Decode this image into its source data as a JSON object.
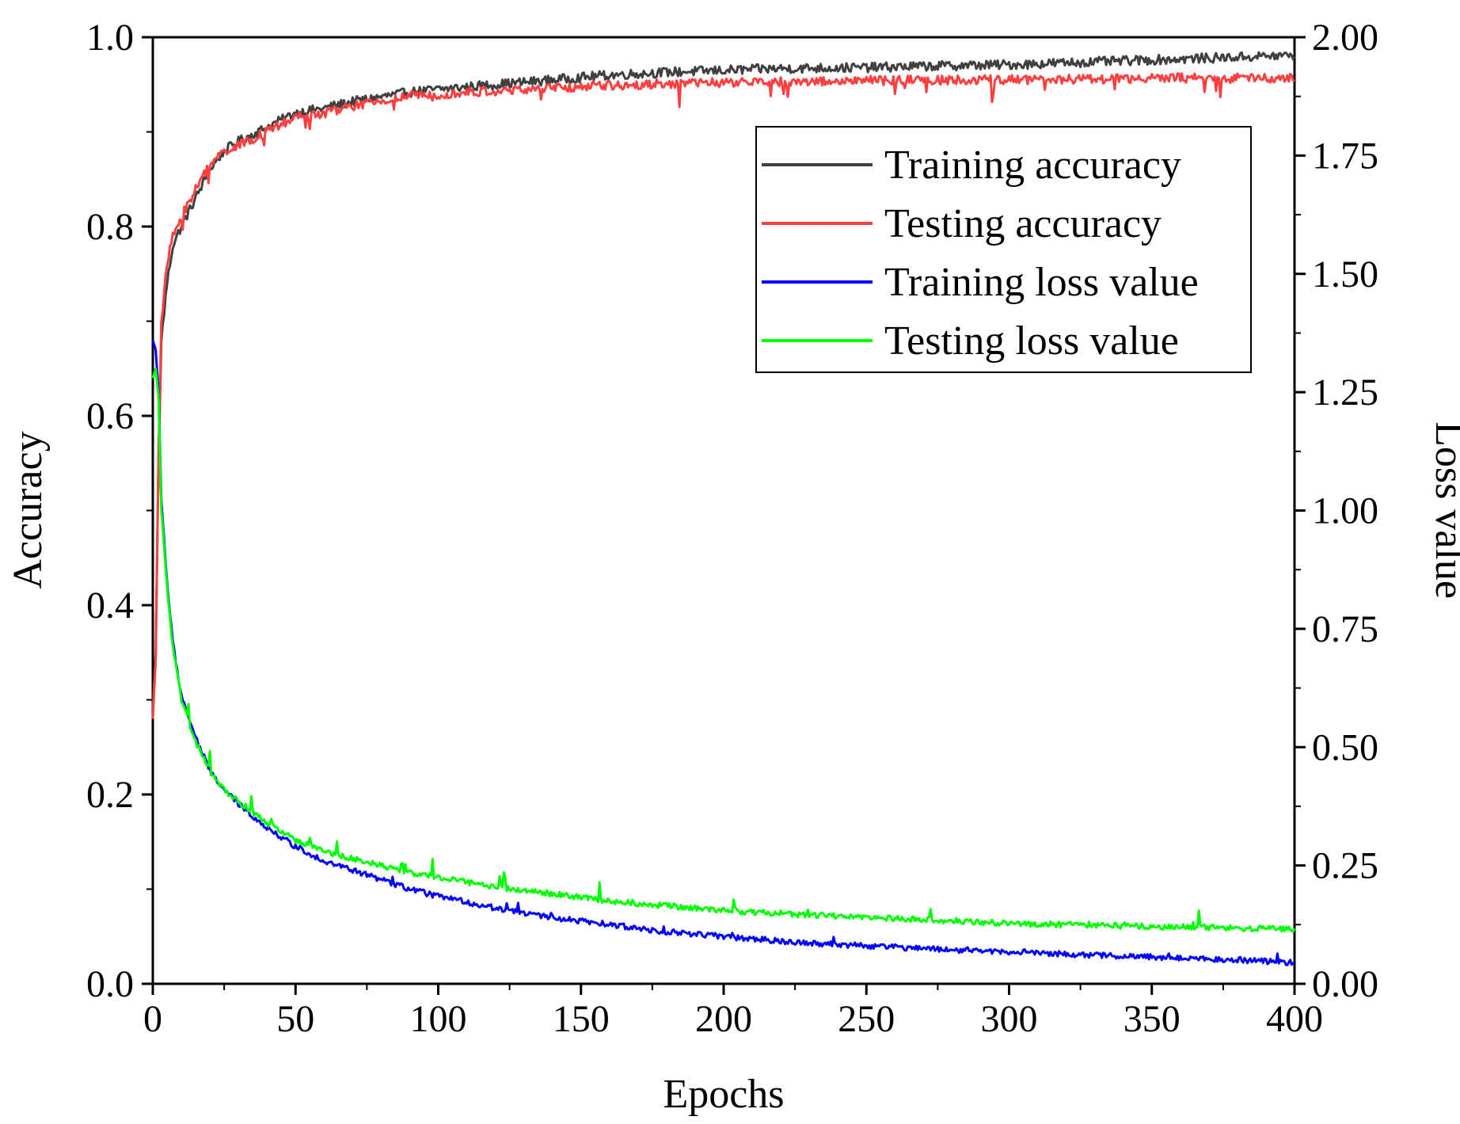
{
  "chart_data": {
    "type": "line",
    "title": "",
    "xlabel": "Epochs",
    "ylabel": "Accuracy",
    "y2label": "Loss value",
    "xlim": [
      0,
      400
    ],
    "ylim": [
      0.0,
      1.0
    ],
    "y2lim": [
      0.0,
      2.0
    ],
    "x_ticks": [
      0,
      50,
      100,
      150,
      200,
      250,
      300,
      350,
      400
    ],
    "x_tick_labels": [
      "0",
      "50",
      "100",
      "150",
      "200",
      "250",
      "300",
      "350",
      "400"
    ],
    "y_ticks": [
      0.0,
      0.2,
      0.4,
      0.6,
      0.8,
      1.0
    ],
    "y_tick_labels": [
      "0.0",
      "0.2",
      "0.4",
      "0.6",
      "0.8",
      "1.0"
    ],
    "y2_ticks": [
      0.0,
      0.25,
      0.5,
      0.75,
      1.0,
      1.25,
      1.5,
      1.75,
      2.0
    ],
    "y2_tick_labels": [
      "0.00",
      "0.25",
      "0.50",
      "0.75",
      "1.00",
      "1.25",
      "1.50",
      "1.75",
      "2.00"
    ],
    "grid": false,
    "legend_position": "top-right",
    "series": [
      {
        "name": "Training accuracy",
        "axis": "left",
        "color": "#404040",
        "x": [
          0,
          1,
          2,
          3,
          5,
          7,
          10,
          15,
          20,
          25,
          30,
          40,
          50,
          60,
          70,
          80,
          90,
          100,
          120,
          140,
          160,
          180,
          200,
          220,
          250,
          280,
          300,
          320,
          340,
          360,
          380,
          400
        ],
        "values": [
          0.29,
          0.35,
          0.55,
          0.68,
          0.74,
          0.78,
          0.8,
          0.83,
          0.86,
          0.88,
          0.89,
          0.905,
          0.92,
          0.925,
          0.932,
          0.937,
          0.942,
          0.945,
          0.95,
          0.955,
          0.96,
          0.963,
          0.965,
          0.967,
          0.968,
          0.97,
          0.971,
          0.973,
          0.975,
          0.977,
          0.979,
          0.981
        ]
      },
      {
        "name": "Testing accuracy",
        "axis": "left",
        "color": "#ff4040",
        "x": [
          0,
          1,
          2,
          3,
          5,
          7,
          10,
          15,
          20,
          25,
          30,
          40,
          50,
          60,
          70,
          80,
          90,
          100,
          120,
          140,
          160,
          180,
          200,
          220,
          250,
          280,
          300,
          320,
          340,
          360,
          380,
          400
        ],
        "values": [
          0.28,
          0.34,
          0.56,
          0.7,
          0.76,
          0.79,
          0.81,
          0.84,
          0.865,
          0.88,
          0.885,
          0.9,
          0.915,
          0.92,
          0.927,
          0.932,
          0.938,
          0.94,
          0.943,
          0.946,
          0.949,
          0.951,
          0.952,
          0.953,
          0.954,
          0.955,
          0.955,
          0.956,
          0.956,
          0.957,
          0.957,
          0.957
        ]
      },
      {
        "name": "Training loss value",
        "axis": "right",
        "color": "#0000ff",
        "x": [
          0,
          1,
          2,
          3,
          5,
          7,
          10,
          15,
          20,
          25,
          30,
          40,
          50,
          60,
          70,
          80,
          90,
          100,
          120,
          140,
          160,
          180,
          200,
          220,
          250,
          280,
          300,
          320,
          340,
          360,
          380,
          400
        ],
        "values": [
          1.36,
          1.34,
          1.25,
          1.02,
          0.85,
          0.72,
          0.61,
          0.52,
          0.45,
          0.41,
          0.38,
          0.33,
          0.29,
          0.26,
          0.24,
          0.22,
          0.2,
          0.185,
          0.16,
          0.14,
          0.125,
          0.11,
          0.1,
          0.09,
          0.08,
          0.072,
          0.068,
          0.063,
          0.058,
          0.055,
          0.05,
          0.045
        ]
      },
      {
        "name": "Testing loss value",
        "axis": "right",
        "color": "#00ff00",
        "x": [
          0,
          1,
          2,
          3,
          5,
          7,
          10,
          15,
          20,
          25,
          30,
          40,
          50,
          60,
          70,
          80,
          90,
          100,
          120,
          140,
          160,
          180,
          200,
          220,
          250,
          280,
          300,
          320,
          340,
          360,
          380,
          400
        ],
        "values": [
          1.28,
          1.3,
          1.24,
          1.0,
          0.84,
          0.71,
          0.6,
          0.51,
          0.45,
          0.41,
          0.385,
          0.34,
          0.305,
          0.28,
          0.265,
          0.25,
          0.235,
          0.225,
          0.205,
          0.19,
          0.175,
          0.165,
          0.155,
          0.148,
          0.14,
          0.133,
          0.128,
          0.125,
          0.122,
          0.12,
          0.118,
          0.115
        ]
      }
    ]
  }
}
